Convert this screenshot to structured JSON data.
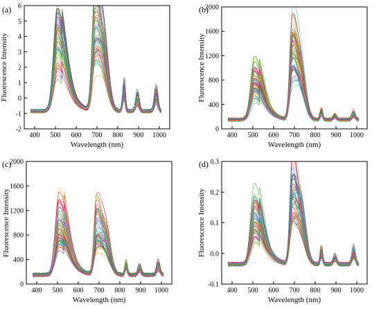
{
  "chart_data": [
    {
      "panel_label": "(a)",
      "type": "line",
      "xlabel": "Wavelength (nm)",
      "ylabel": "Fluorescence Intensity",
      "xlim": [
        350,
        1050
      ],
      "ylim": [
        -2,
        6
      ],
      "xticks": [
        400,
        500,
        600,
        700,
        800,
        900,
        1000
      ],
      "yticks": [
        -2,
        -1,
        0,
        1,
        2,
        3,
        4,
        5,
        6
      ],
      "grid": false,
      "legend": "none",
      "baseline": -0.85,
      "features": [
        {
          "center": 510,
          "width": 18,
          "peak": 4.4
        },
        {
          "center": 690,
          "width": 13,
          "peak": 4.7
        },
        {
          "center": 735,
          "width": 22,
          "peak": 2.0
        },
        {
          "center": 830,
          "width": 6,
          "peak": 0.7
        },
        {
          "center": 895,
          "width": 8,
          "peak": 0.1
        },
        {
          "center": 985,
          "width": 8,
          "peak": 0.4
        }
      ],
      "series_count": 60
    },
    {
      "panel_label": "(b)",
      "type": "line",
      "xlabel": "Wavelength (nm)",
      "ylabel": "Fluorescence Intensity",
      "xlim": [
        350,
        1050
      ],
      "ylim": [
        0,
        2000
      ],
      "xticks": [
        400,
        500,
        600,
        700,
        800,
        900,
        1000
      ],
      "yticks": [
        0,
        400,
        800,
        1200,
        1600,
        2000
      ],
      "grid": false,
      "legend": "none",
      "baseline": 150,
      "features": [
        {
          "center": 508,
          "width": 18,
          "peak": 900
        },
        {
          "center": 690,
          "width": 12,
          "peak": 1450
        },
        {
          "center": 735,
          "width": 22,
          "peak": 700
        },
        {
          "center": 830,
          "width": 6,
          "peak": 300
        },
        {
          "center": 895,
          "width": 8,
          "peak": 220
        },
        {
          "center": 985,
          "width": 8,
          "peak": 260
        }
      ],
      "series_count": 60
    },
    {
      "panel_label": "(c)",
      "type": "line",
      "xlabel": "Wavelength (nm)",
      "ylabel": "Fluorescence Intensity",
      "xlim": [
        350,
        1050
      ],
      "ylim": [
        0,
        2000
      ],
      "xticks": [
        400,
        500,
        600,
        700,
        800,
        900,
        1000
      ],
      "yticks": [
        0,
        400,
        800,
        1200,
        1600,
        2000
      ],
      "grid": false,
      "legend": "none",
      "baseline": 150,
      "features": [
        {
          "center": 508,
          "width": 18,
          "peak": 1100
        },
        {
          "center": 688,
          "width": 12,
          "peak": 1050
        },
        {
          "center": 735,
          "width": 22,
          "peak": 650
        },
        {
          "center": 830,
          "width": 6,
          "peak": 330
        },
        {
          "center": 895,
          "width": 8,
          "peak": 280
        },
        {
          "center": 985,
          "width": 8,
          "peak": 330
        }
      ],
      "series_count": 60
    },
    {
      "panel_label": "(d)",
      "type": "line",
      "xlabel": "Wavelength (nm)",
      "ylabel": "Fluorescence Intensity",
      "xlim": [
        350,
        1050
      ],
      "ylim": [
        -0.1,
        0.3
      ],
      "xticks": [
        400,
        500,
        600,
        700,
        800,
        900,
        1000
      ],
      "yticks": [
        -0.1,
        0.0,
        0.1,
        0.2,
        0.3
      ],
      "ytick_labels": [
        "-0.1",
        "0.0",
        "0.1",
        "0.2",
        "0.3"
      ],
      "grid": false,
      "legend": "none",
      "baseline": -0.035,
      "features": [
        {
          "center": 508,
          "width": 18,
          "peak": 0.17
        },
        {
          "center": 690,
          "width": 12,
          "peak": 0.24
        },
        {
          "center": 735,
          "width": 22,
          "peak": 0.1
        },
        {
          "center": 830,
          "width": 6,
          "peak": 0.015
        },
        {
          "center": 895,
          "width": 8,
          "peak": -0.01
        },
        {
          "center": 985,
          "width": 8,
          "peak": 0.015
        }
      ],
      "series_count": 60
    }
  ],
  "palette": [
    "#e41a1c",
    "#377eb8",
    "#4daf4a",
    "#984ea3",
    "#ff7f00",
    "#c9c900",
    "#a65628",
    "#f781bf",
    "#17becf",
    "#2ca02c",
    "#1f77b4",
    "#ff1493",
    "#8c564b",
    "#00ced1",
    "#9467bd",
    "#bcbd22"
  ]
}
